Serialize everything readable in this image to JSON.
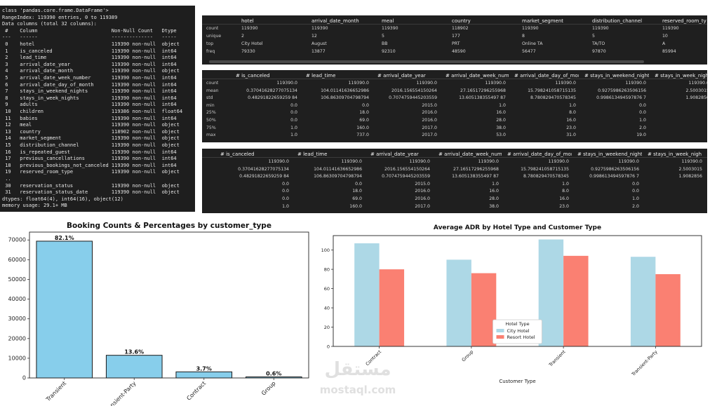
{
  "info": {
    "lines": [
      "class 'pandas.core.frame.DataFrame'>",
      "RangeIndex: 119390 entries, 0 to 119389",
      "Data columns (total 32 columns):",
      " #    Column                         Non-Null Count   Dtype",
      "---   ------                         --------------   -----",
      " 0    hotel                          119390 non-null  object",
      " 1    is_canceled                    119390 non-null  int64",
      " 2    lead_time                      119390 non-null  int64",
      " 3    arrival_date_year              119390 non-null  int64",
      " 4    arrival_date_month             119390 non-null  object",
      " 5    arrival_date_week_number       119390 non-null  int64",
      " 6    arrival_date_day_of_month      119390 non-null  int64",
      " 7    stays_in_weekend_nights        119390 non-null  int64",
      " 8    stays_in_week_nights           119390 non-null  int64",
      " 9    adults                         119390 non-null  int64",
      " 10   children                       119386 non-null  float64",
      " 11   babies                         119390 non-null  int64",
      " 12   meal                           119390 non-null  object",
      " 13   country                        118902 non-null  object",
      " 14   market_segment                 119390 non-null  object",
      " 15   distribution_channel           119390 non-null  object",
      " 16   is_repeated_guest              119390 non-null  int64",
      " 17   previous_cancellations         119390 non-null  int64",
      " 18   previous_bookings_not_canceled 119390 non-null  int64",
      " 19   reserved_room_type             119390 non-null  object",
      " ..",
      " 30   reservation_status             119390 non-null  object",
      " 31   reservation_status_date        119390 non-null  object",
      "dtypes: float64(4), int64(16), object(12)",
      "memory usage: 29.1+ MB"
    ]
  },
  "tables": [
    {
      "columns": [
        "hotel",
        "arrival_date_month",
        "meal",
        "country",
        "market_segment",
        "distribution_channel",
        "reserved_room_ty"
      ],
      "index": [
        "count",
        "unique",
        "top",
        "freq"
      ],
      "rows": [
        [
          "119390",
          "119390",
          "119390",
          "118902",
          "119390",
          "119390",
          "119390"
        ],
        [
          "2",
          "12",
          "5",
          "177",
          "8",
          "5",
          "10"
        ],
        [
          "City Hotel",
          "August",
          "BB",
          "PRT",
          "Online TA",
          "TA/TO",
          "A"
        ],
        [
          "79330",
          "13877",
          "92310",
          "48590",
          "56477",
          "97870",
          "85994"
        ]
      ]
    },
    {
      "columns": [
        "# is_canceled",
        "# lead_time",
        "# arrival_date_year",
        "# arrival_date_week_number",
        "# arrival_date_day_of_mon...",
        "# stays_in_weekend_nights",
        "# stays_in_week_nigh"
      ],
      "index": [
        "count",
        "mean",
        "std",
        "min",
        "25%",
        "50%",
        "75%",
        "max"
      ],
      "rows": [
        [
          "119390.0",
          "119390.0",
          "119390.0",
          "119390.0",
          "119390.0",
          "119390.0",
          "119390.0"
        ],
        [
          "0.37041628277075134",
          "104.01141636652986",
          "2016.156554150264",
          "27.16517296255968",
          "15.798241058715135",
          "0.9275986263506156",
          "2.5003015"
        ],
        [
          "0.48291822659259 84",
          "106.86309704798794",
          "0.7074759445203559",
          "13.605138355497 87",
          "8.780829470578345",
          "0.998613494597876 7",
          "1.9082856"
        ],
        [
          "0.0",
          "0.0",
          "2015.0",
          "1.0",
          "1.0",
          "0.0",
          ""
        ],
        [
          "0.0",
          "18.0",
          "2016.0",
          "16.0",
          "8.0",
          "0.0",
          ""
        ],
        [
          "0.0",
          "69.0",
          "2016.0",
          "28.0",
          "16.0",
          "1.0",
          ""
        ],
        [
          "1.0",
          "160.0",
          "2017.0",
          "38.0",
          "23.0",
          "2.0",
          ""
        ],
        [
          "1.0",
          "737.0",
          "2017.0",
          "53.0",
          "31.0",
          "19.0",
          ""
        ]
      ]
    },
    {
      "columns": [
        "# is_canceled",
        "# lead_time",
        "# arrival_date_year",
        "# arrival_date_week_number",
        "# arrival_date_day_of_mon...",
        "# stays_in_weekend_nights",
        "# stays_in_week_nigh"
      ],
      "rows": [
        [
          "119390.0",
          "119390.0",
          "119390.0",
          "119390.0",
          "119390.0",
          "119390.0",
          "119390.0"
        ],
        [
          "0.37041628277075134",
          "104.01141636652986",
          "2016.156554150264",
          "27.16517296255968",
          "15.798241058715135",
          "0.9275986263506156",
          "2.5003015"
        ],
        [
          "0.48291822659259 84",
          "106.86309704798794",
          "0.7074759445203559",
          "13.605138355497 87",
          "8.780829470578345",
          "0.998613494597876 7",
          "1.9082856"
        ],
        [
          "0.0",
          "0.0",
          "2015.0",
          "1.0",
          "1.0",
          "0.0",
          ""
        ],
        [
          "0.0",
          "18.0",
          "2016.0",
          "16.0",
          "8.0",
          "0.0",
          ""
        ],
        [
          "0.0",
          "69.0",
          "2016.0",
          "28.0",
          "16.0",
          "1.0",
          ""
        ],
        [
          "1.0",
          "160.0",
          "2017.0",
          "38.0",
          "23.0",
          "2.0",
          ""
        ]
      ]
    }
  ],
  "chart_data": [
    {
      "type": "bar",
      "title": "Booking Counts & Percentages by customer_type",
      "categories": [
        "Transient",
        "Transient-Party",
        "Contract",
        "Group"
      ],
      "values": [
        69400,
        11500,
        3100,
        540
      ],
      "annotations": [
        "82.1%",
        "13.6%",
        "3.7%",
        "0.6%"
      ],
      "color": "#87ceeb",
      "edge_color": "#1a1a1a",
      "ylim": [
        0,
        74000
      ],
      "yticks": [
        0,
        10000,
        20000,
        30000,
        40000,
        50000,
        60000,
        70000
      ],
      "grid": false
    },
    {
      "type": "grouped_bar",
      "title": "Average ADR by Hotel Type and Customer Type",
      "x_label": "Customer Type",
      "categories": [
        "Contract",
        "Group",
        "Transient",
        "Transient-Party"
      ],
      "series": [
        {
          "name": "City Hotel",
          "color": "#add8e6",
          "values": [
            107,
            90,
            111,
            93
          ]
        },
        {
          "name": "Resort Hotel",
          "color": "#fa8072",
          "values": [
            80,
            76,
            94,
            75
          ]
        }
      ],
      "legend_title": "Hotel Type",
      "legend": "lower center",
      "ylim": [
        0,
        115
      ],
      "yticks": [
        0,
        20,
        40,
        60,
        80,
        100
      ],
      "grid": false
    }
  ],
  "watermark": {
    "logo": "مستقل",
    "text": "mostaql.com"
  }
}
